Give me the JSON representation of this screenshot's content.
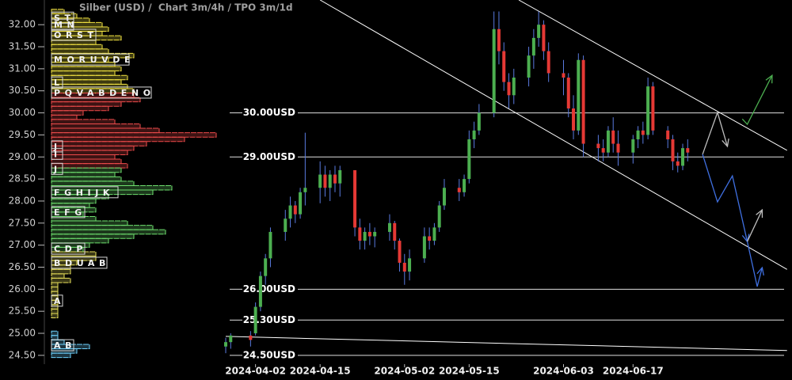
{
  "chart_data": {
    "type": "candlestick",
    "title": "Silber (USD) /  Chart 3m/4h / TPO 3m/1d",
    "up_color": "#4caf50",
    "down_color": "#e53935",
    "xlim": [
      "2024-03-27",
      "2024-07-19"
    ],
    "xticks": [
      "2024-04-02",
      "2024-04-15",
      "2024-05-02",
      "2024-05-15",
      "2024-06-03",
      "2024-06-17"
    ],
    "ylim": [
      24.3,
      32.56
    ],
    "yticks": [
      {
        "value": 24.5,
        "label": "24.50"
      },
      {
        "value": 25,
        "label": "25.00"
      },
      {
        "value": 25.5,
        "label": "25.50"
      },
      {
        "value": 26,
        "label": "26.00"
      },
      {
        "value": 26.5,
        "label": "26.50"
      },
      {
        "value": 27,
        "label": "27.00"
      },
      {
        "value": 27.5,
        "label": "27.50"
      },
      {
        "value": 28,
        "label": "28.00"
      },
      {
        "value": 28.5,
        "label": "28.50"
      },
      {
        "value": 29,
        "label": "29.00"
      },
      {
        "value": 29.5,
        "label": "29.50"
      },
      {
        "value": 30,
        "label": "30.00"
      },
      {
        "value": 30.5,
        "label": "30.50"
      },
      {
        "value": 31,
        "label": "31.00"
      },
      {
        "value": 31.5,
        "label": "31.50"
      },
      {
        "value": 32,
        "label": "32.00"
      }
    ],
    "x": [
      "2024-03-27",
      "2024-03-28",
      "2024-04-01",
      "2024-04-02",
      "2024-04-03",
      "2024-04-04",
      "2024-04-05",
      "2024-04-08",
      "2024-04-09",
      "2024-04-10",
      "2024-04-11",
      "2024-04-12",
      "2024-04-15",
      "2024-04-16",
      "2024-04-17",
      "2024-04-18",
      "2024-04-19",
      "2024-04-22",
      "2024-04-23",
      "2024-04-24",
      "2024-04-25",
      "2024-04-26",
      "2024-04-29",
      "2024-04-30",
      "2024-05-01",
      "2024-05-02",
      "2024-05-03",
      "2024-05-06",
      "2024-05-07",
      "2024-05-08",
      "2024-05-09",
      "2024-05-10",
      "2024-05-13",
      "2024-05-14",
      "2024-05-15",
      "2024-05-16",
      "2024-05-17",
      "2024-05-20",
      "2024-05-21",
      "2024-05-22",
      "2024-05-23",
      "2024-05-24",
      "2024-05-27",
      "2024-05-28",
      "2024-05-29",
      "2024-05-30",
      "2024-05-31",
      "2024-06-03",
      "2024-06-04",
      "2024-06-05",
      "2024-06-06",
      "2024-06-07",
      "2024-06-10",
      "2024-06-11",
      "2024-06-12",
      "2024-06-13",
      "2024-06-14",
      "2024-06-17",
      "2024-06-18",
      "2024-06-19",
      "2024-06-20",
      "2024-06-21",
      "2024-06-24",
      "2024-06-25",
      "2024-06-26",
      "2024-06-27",
      "2024-06-28"
    ],
    "open": [
      24.7,
      24.8,
      24.95,
      25.0,
      25.6,
      26.3,
      26.7,
      27.3,
      27.6,
      27.9,
      27.7,
      28.2,
      28.3,
      28.6,
      28.3,
      28.6,
      28.4,
      28.7,
      27.4,
      27.1,
      27.3,
      27.2,
      27.3,
      27.5,
      27.1,
      26.6,
      26.4,
      26.7,
      27.2,
      27.1,
      27.4,
      27.9,
      28.3,
      28.2,
      28.5,
      29.4,
      29.6,
      30.0,
      31.9,
      31.4,
      30.7,
      30.4,
      30.8,
      31.3,
      31.7,
      32.0,
      31.4,
      30.9,
      30.8,
      30.1,
      29.6,
      31.2,
      29.3,
      29.2,
      29.1,
      29.6,
      29.3,
      29.1,
      29.4,
      29.6,
      29.5,
      30.6,
      29.6,
      29.4,
      28.9,
      28.8,
      29.2
    ],
    "high": [
      24.9,
      25.0,
      25.05,
      25.7,
      26.4,
      26.8,
      27.4,
      27.8,
      28.1,
      28.0,
      28.3,
      29.55,
      28.9,
      28.8,
      28.7,
      28.8,
      28.8,
      28.7,
      27.6,
      27.4,
      27.5,
      27.4,
      27.7,
      27.55,
      27.15,
      26.8,
      26.9,
      27.4,
      27.4,
      27.5,
      28.0,
      28.5,
      28.5,
      28.6,
      29.6,
      29.8,
      30.2,
      32.3,
      32.3,
      31.6,
      30.9,
      31.0,
      31.5,
      31.9,
      32.3,
      32.1,
      31.6,
      31.2,
      30.9,
      30.4,
      31.35,
      31.3,
      29.5,
      29.4,
      29.7,
      29.9,
      29.6,
      29.5,
      29.7,
      29.8,
      30.8,
      30.7,
      29.7,
      29.5,
      29.1,
      29.3,
      29.4
    ],
    "low": [
      24.55,
      24.65,
      24.7,
      24.95,
      25.5,
      26.1,
      26.5,
      27.1,
      27.4,
      27.5,
      27.6,
      27.9,
      27.95,
      28.1,
      28.0,
      28.2,
      28.1,
      27.2,
      26.9,
      26.9,
      27.0,
      26.95,
      27.1,
      26.9,
      26.4,
      26.1,
      26.2,
      26.6,
      26.9,
      27.0,
      27.3,
      27.8,
      28.0,
      28.1,
      28.4,
      29.2,
      29.5,
      29.9,
      31.1,
      30.5,
      30.1,
      30.2,
      30.6,
      31.0,
      31.5,
      31.2,
      30.7,
      30.4,
      29.9,
      29.4,
      29.5,
      29.0,
      28.9,
      28.9,
      29.0,
      29.1,
      28.8,
      28.85,
      29.2,
      29.3,
      29.4,
      29.5,
      29.2,
      28.7,
      28.65,
      28.7,
      28.9
    ],
    "close": [
      24.8,
      24.95,
      24.85,
      25.6,
      26.3,
      26.7,
      27.3,
      27.6,
      27.9,
      27.7,
      28.2,
      28.3,
      28.6,
      28.3,
      28.6,
      28.4,
      28.7,
      27.4,
      27.1,
      27.3,
      27.2,
      27.3,
      27.5,
      27.1,
      26.6,
      26.4,
      26.7,
      27.2,
      27.1,
      27.4,
      27.9,
      28.3,
      28.2,
      28.5,
      29.4,
      29.6,
      30.0,
      31.9,
      31.4,
      30.7,
      30.4,
      30.8,
      31.3,
      31.7,
      32.0,
      31.4,
      30.9,
      30.8,
      30.1,
      29.6,
      31.2,
      29.3,
      29.2,
      29.1,
      29.6,
      29.3,
      29.1,
      29.4,
      29.6,
      29.5,
      30.6,
      29.6,
      29.4,
      28.9,
      28.8,
      29.2,
      29.1
    ],
    "levels": [
      {
        "value": 30,
        "label": "30.00USD"
      },
      {
        "value": 29,
        "label": "29.00USD"
      },
      {
        "value": 26,
        "label": "26.00USD"
      },
      {
        "value": 25.3,
        "label": "25.30USD"
      },
      {
        "value": 24.5,
        "label": "24.50USD"
      }
    ],
    "trendlines": [
      {
        "color": "#ffffff",
        "points": [
          [
            "2024-04-15",
            32.56
          ],
          [
            "2024-07-18",
            26.45
          ]
        ]
      },
      {
        "color": "#ffffff",
        "points": [
          [
            "2024-05-25",
            32.56
          ],
          [
            "2024-07-18",
            29.15
          ]
        ]
      },
      {
        "color": "#ffffff",
        "points": [
          [
            "2024-03-27",
            24.93
          ],
          [
            "2024-07-18",
            24.61
          ]
        ]
      }
    ],
    "projections": [
      {
        "color": "#bdbdbd",
        "points": [
          [
            "2024-07-01",
            29.06
          ],
          [
            "2024-07-04",
            30.01
          ],
          [
            "2024-07-06",
            29.24
          ]
        ]
      },
      {
        "color": "#3f6fe0",
        "points": [
          [
            "2024-07-01",
            29.06
          ],
          [
            "2024-07-04",
            27.98
          ],
          [
            "2024-07-07",
            28.57
          ],
          [
            "2024-07-10",
            27.08
          ]
        ]
      },
      {
        "color": "#bdbdbd",
        "points": [
          [
            "2024-07-10",
            27.08
          ],
          [
            "2024-07-13",
            27.8
          ]
        ]
      },
      {
        "color": "#3f6fe0",
        "points": [
          [
            "2024-07-10",
            27.08
          ],
          [
            "2024-07-12",
            26.06
          ],
          [
            "2024-07-13",
            26.49
          ]
        ]
      },
      {
        "color": "#4caf50",
        "points": [
          [
            "2024-07-09",
            29.86
          ],
          [
            "2024-07-10",
            29.74
          ],
          [
            "2024-07-15",
            30.85
          ]
        ]
      }
    ],
    "profile": [
      {
        "color": "#f5e642",
        "prices": [
          32.3,
          32.2,
          32.1,
          32.0,
          31.9,
          31.8,
          31.7,
          31.6,
          31.5,
          31.4,
          31.3,
          31.2,
          31.1,
          31.0,
          30.9,
          30.8,
          30.7,
          30.6,
          30.5
        ],
        "counts": [
          2,
          4,
          6,
          8,
          9,
          8,
          11,
          7,
          8,
          9,
          13,
          9,
          10,
          11,
          10,
          12,
          11,
          12,
          13
        ]
      },
      {
        "color": "#ef4b4b",
        "prices": [
          30.4,
          30.3,
          30.2,
          30.1,
          30.0,
          29.9,
          29.8,
          29.7,
          29.6,
          29.5,
          29.4,
          29.3,
          29.2,
          29.1,
          29.0,
          28.9,
          28.8
        ],
        "counts": [
          13,
          14,
          11,
          9,
          5,
          4,
          10,
          14,
          17,
          26,
          21,
          15,
          13,
          12,
          10,
          11,
          12
        ]
      },
      {
        "color": "#6ee06e",
        "prices": [
          28.7,
          28.6,
          28.5,
          28.4,
          28.3,
          28.2,
          28.1,
          28.0,
          27.9,
          27.8,
          27.7,
          27.6,
          27.5,
          27.4,
          27.3,
          27.2,
          27.1,
          27.0,
          26.9
        ],
        "counts": [
          11,
          10,
          11,
          13,
          19,
          16,
          9,
          7,
          6,
          7,
          5,
          7,
          12,
          16,
          18,
          13,
          9,
          6,
          5
        ]
      },
      {
        "color": "#e8e05a",
        "prices": [
          26.8,
          26.7,
          26.6,
          26.5,
          26.4,
          26.3,
          26.2,
          26.1,
          26.0,
          25.9,
          25.8,
          25.7,
          25.6,
          25.5,
          25.4
        ],
        "counts": [
          7,
          7,
          4,
          3,
          3,
          2,
          3,
          1,
          1,
          1,
          1,
          1,
          1,
          1,
          1
        ]
      },
      {
        "color": "#6fd3ff",
        "prices": [
          25.0,
          24.9,
          24.8,
          24.7,
          24.6,
          24.5
        ],
        "counts": [
          1,
          1,
          2,
          6,
          4,
          3
        ]
      }
    ],
    "tpo_letters": [
      {
        "price": 32.16,
        "text": "ST"
      },
      {
        "price": 32.0,
        "text": "MN"
      },
      {
        "price": 31.77,
        "text": "ORST"
      },
      {
        "price": 31.21,
        "text": "MORUVDE"
      },
      {
        "price": 30.69,
        "text": "L"
      },
      {
        "price": 30.46,
        "text": "PQVABDENO"
      },
      {
        "price": 29.24,
        "text": "J"
      },
      {
        "price": 29.07,
        "text": "I"
      },
      {
        "price": 28.73,
        "text": "J"
      },
      {
        "price": 28.2,
        "text": "FGHIJK"
      },
      {
        "price": 27.75,
        "text": "EFG"
      },
      {
        "price": 26.92,
        "text": "CDP"
      },
      {
        "price": 26.6,
        "text": "BDUAB"
      },
      {
        "price": 25.74,
        "text": "A"
      },
      {
        "price": 24.73,
        "text": "AB"
      }
    ]
  }
}
